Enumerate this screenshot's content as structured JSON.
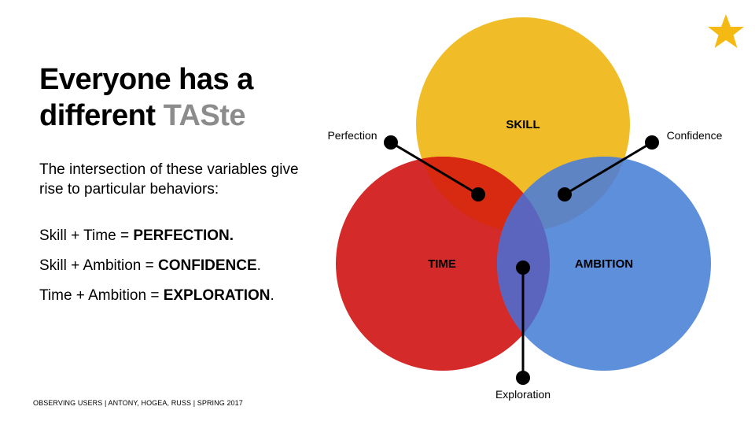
{
  "slide": {
    "title_line1": "Everyone has a",
    "title_line2_prefix": "different ",
    "title_line2_accent": "TASte",
    "intro": "The intersection of these variables give rise to particular behaviors:",
    "equations": [
      {
        "prefix": "Skill + Time = ",
        "result": "PERFECTION.",
        "suffix": ""
      },
      {
        "prefix": "Skill + Ambition = ",
        "result": "CONFIDENCE",
        "suffix": "."
      },
      {
        "prefix": "Time + Ambition = ",
        "result": "EXPLORATION",
        "suffix": "."
      }
    ],
    "footer": "OBSERVING USERS | ANTONY, HOGEA, RUSS | SPRING 2017",
    "star_icon": "star-icon",
    "colors": {
      "title_accent": "#8c8c8c",
      "star": "#f5b914"
    }
  },
  "diagram": {
    "circles": [
      {
        "label": "SKILL",
        "color": "#f0bd28"
      },
      {
        "label": "TIME",
        "color": "#d42a2a"
      },
      {
        "label": "AMBITION",
        "color": "#5e8fdb"
      }
    ],
    "overlap_colors": {
      "skill_time": "#d72a10",
      "skill_ambition": "#5e84c4",
      "time_ambition": "#5b65bd"
    },
    "callouts": [
      {
        "label": "Perfection"
      },
      {
        "label": "Confidence"
      },
      {
        "label": "Exploration"
      }
    ]
  }
}
